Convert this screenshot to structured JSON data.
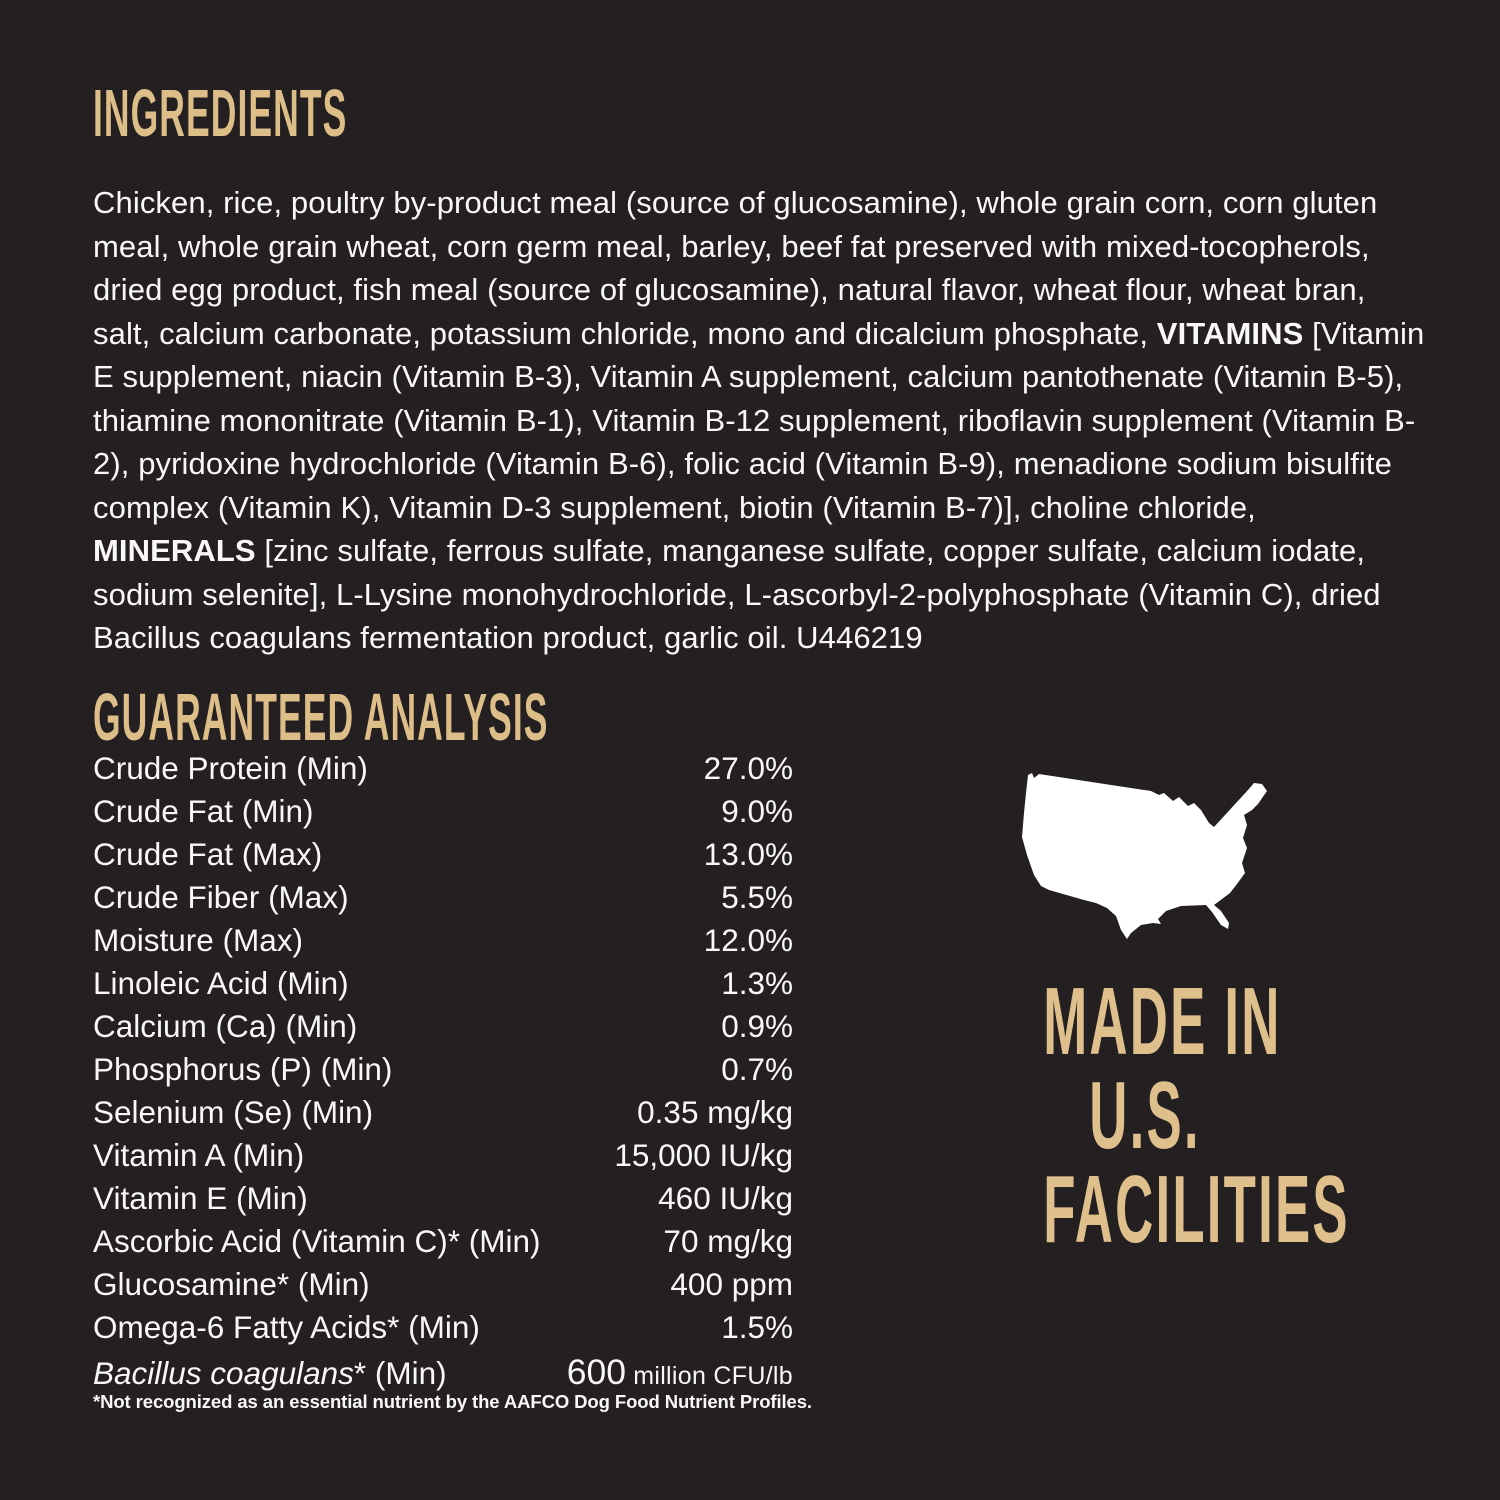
{
  "colors": {
    "background": "#242021",
    "gold": "#DDBE88",
    "text_white": "#FAF8F7",
    "map_white": "#FFFFFF"
  },
  "ingredients": {
    "heading": "INGREDIENTS",
    "segments": [
      {
        "text": "Chicken, rice, poultry by-product meal (source of glucosamine), whole grain corn, corn gluten meal, whole grain wheat, corn germ meal, barley, beef fat preserved with mixed-tocopherols, dried egg product, fish meal (source of glucosamine), natural flavor, wheat flour, wheat bran, salt, calcium carbonate, potassium chloride, mono and dicalcium phosphate, ",
        "bold": false
      },
      {
        "text": "VITAMINS",
        "bold": true
      },
      {
        "text": " [Vitamin E supplement, niacin (Vitamin B-3), Vitamin A supplement, calcium pantothenate (Vitamin B-5), thiamine mononitrate (Vitamin B-1), Vitamin B-12 supplement, riboflavin supplement (Vitamin B-2), pyridoxine hydrochloride (Vitamin B-6), folic acid (Vitamin B-9), menadione sodium bisulfite complex (Vitamin K), Vitamin D-3 supplement, biotin (Vitamin B-7)], choline chloride, ",
        "bold": false
      },
      {
        "text": "MINERALS",
        "bold": true
      },
      {
        "text": " [zinc sulfate, ferrous sulfate, manganese sulfate, copper sulfate, calcium iodate, sodium selenite], L-Lysine monohydrochloride, L-ascorbyl-2-polyphosphate (Vitamin C), dried Bacillus coagulans fermentation product, garlic oil. U446219",
        "bold": false
      }
    ]
  },
  "analysis": {
    "heading": "GUARANTEED ANALYSIS",
    "rows": [
      {
        "label": "Crude Protein (Min)",
        "value": "27.0%"
      },
      {
        "label": "Crude Fat (Min)",
        "value": "9.0%"
      },
      {
        "label": "Crude Fat (Max)",
        "value": "13.0%"
      },
      {
        "label": "Crude Fiber (Max)",
        "value": "5.5%"
      },
      {
        "label": "Moisture (Max)",
        "value": "12.0%"
      },
      {
        "label": "Linoleic Acid (Min)",
        "value": "1.3%"
      },
      {
        "label": "Calcium (Ca) (Min)",
        "value": "0.9%"
      },
      {
        "label": "Phosphorus (P) (Min)",
        "value": "0.7%"
      },
      {
        "label": "Selenium (Se) (Min)",
        "value": "0.35 mg/kg"
      },
      {
        "label": "Vitamin A (Min)",
        "value": "15,000 IU/kg"
      },
      {
        "label": "Vitamin E (Min)",
        "value": "460 IU/kg"
      },
      {
        "label": "Ascorbic Acid (Vitamin C)* (Min)",
        "value": "70 mg/kg"
      },
      {
        "label": "Glucosamine* (Min)",
        "value": "400 ppm"
      },
      {
        "label": "Omega-6 Fatty Acids* (Min)",
        "value": "1.5%"
      },
      {
        "label_italic": "Bacillus coagulans",
        "label_rest": "* (Min)",
        "value_big": "600",
        "value_small": " million CFU/lb"
      }
    ],
    "footnote": "*Not recognized as an essential nutrient by the AAFCO Dog Food Nutrient Profiles."
  },
  "made_in": {
    "lines": [
      "MADE IN",
      "U.S.",
      "FACILITIES"
    ]
  }
}
